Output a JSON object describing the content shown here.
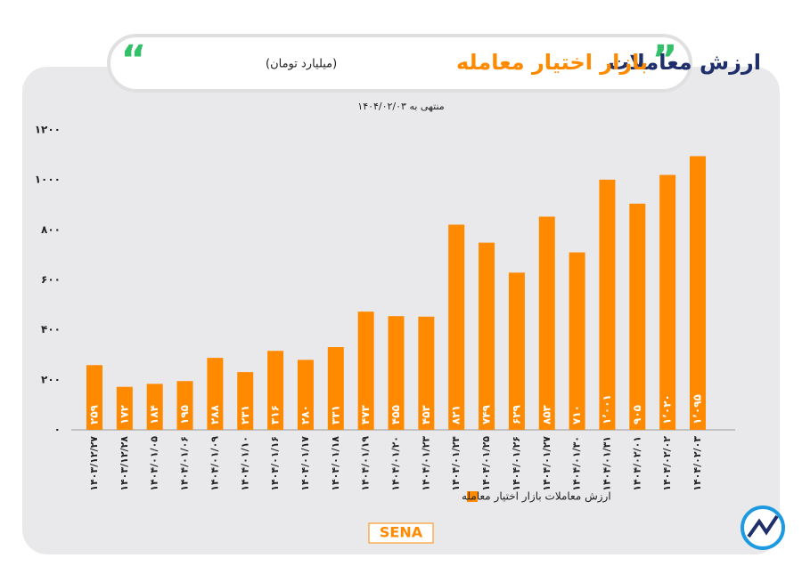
{
  "chart_data": {
    "type": "bar",
    "title": "ارزش معاملات",
    "title_highlight": "بازار اختیار معامله",
    "subtitle": "(میلیارد تومان)",
    "note": "منتهی به ۱۴۰۴/۰۲/۰۳",
    "brand": "SENA",
    "categories": [
      "۱۴۰۳/۱۲/۲۷",
      "۱۴۰۳/۱۲/۲۸",
      "۱۴۰۴/۰۱/۰۵",
      "۱۴۰۴/۰۱/۰۶",
      "۱۴۰۴/۰۱/۰۹",
      "۱۴۰۴/۰۱/۱۰",
      "۱۴۰۴/۰۱/۱۶",
      "۱۴۰۴/۰۱/۱۷",
      "۱۴۰۴/۰۱/۱۸",
      "۱۴۰۴/۰۱/۱۹",
      "۱۴۰۴/۰۱/۲۰",
      "۱۴۰۴/۰۱/۲۳",
      "۱۴۰۴/۰۱/۲۴",
      "۱۴۰۴/۰۱/۲۵",
      "۱۴۰۴/۰۱/۲۶",
      "۱۴۰۴/۰۱/۲۷",
      "۱۴۰۴/۰۱/۳۰",
      "۱۴۰۴/۰۱/۳۱",
      "۱۴۰۴/۰۲/۰۱",
      "۱۴۰۴/۰۲/۰۲",
      "۱۴۰۴/۰۲/۰۳"
    ],
    "series": [
      {
        "name": "ارزش معاملات بازار اختیار معامله",
        "color": "#ff8a00",
        "values": [
          259,
          172,
          184,
          195,
          288,
          231,
          316,
          280,
          331,
          473,
          455,
          453,
          821,
          749,
          629,
          853,
          710,
          1001,
          905,
          1020,
          1095
        ],
        "value_labels": [
          "۲۵۹",
          "۱۷۲",
          "۱۸۴",
          "۱۹۵",
          "۲۸۸",
          "۲۳۱",
          "۳۱۶",
          "۲۸۰",
          "۳۳۱",
          "۴۷۳",
          "۴۵۵",
          "۴۵۳",
          "۸۲۱",
          "۷۴۹",
          "۶۲۹",
          "۸۵۳",
          "۷۱۰",
          "۱٬۰۰۱",
          "۹۰۵",
          "۱٬۰۲۰",
          "۱٬۰۹۵"
        ]
      }
    ],
    "ylim": [
      0,
      1200
    ],
    "yticks": [
      {
        "value": 0,
        "label": "۰"
      },
      {
        "value": 200,
        "label": "۲۰۰"
      },
      {
        "value": 400,
        "label": "۴۰۰"
      },
      {
        "value": 600,
        "label": "۶۰۰"
      },
      {
        "value": 800,
        "label": "۸۰۰"
      },
      {
        "value": 1000,
        "label": "۱۰۰۰"
      },
      {
        "value": 1200,
        "label": "۱۲۰۰"
      }
    ],
    "grid": false
  }
}
